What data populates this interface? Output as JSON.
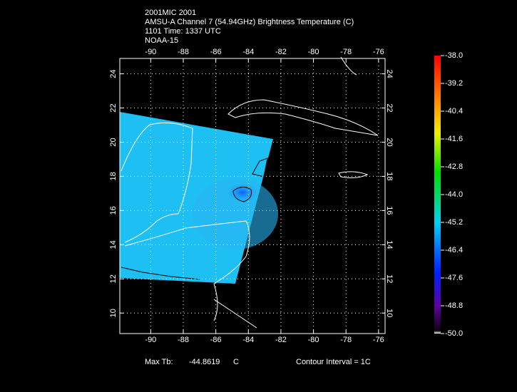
{
  "header": {
    "lines": [
      "2001MIC 2001",
      "AMSU-A Channel 7 (54.94GHz) Brightness Temperature (C)",
      "1101 Time: 1337 UTC",
      "NOAA-15"
    ]
  },
  "map": {
    "lon_range": [
      -91.9,
      -75.6
    ],
    "lat_range": [
      8.8,
      24.9
    ],
    "lon_ticks": [
      -90,
      -88,
      -86,
      -84,
      -82,
      -80,
      -78,
      -76
    ],
    "lat_ticks": [
      10,
      12,
      14,
      16,
      18,
      20,
      22,
      24
    ],
    "grid": true
  },
  "colorbar": {
    "range": [
      -50,
      -38
    ],
    "ticks": [
      {
        "value": -38,
        "label": "-38.0"
      },
      {
        "value": -39.2,
        "label": "-39.2"
      },
      {
        "value": -40.4,
        "label": "-40.4"
      },
      {
        "value": -41.6,
        "label": "-41.6"
      },
      {
        "value": -42.8,
        "label": "-42.8"
      },
      {
        "value": -44,
        "label": "-44.0"
      },
      {
        "value": -45.2,
        "label": "-45.2"
      },
      {
        "value": -46.4,
        "label": "-46.4"
      },
      {
        "value": -47.6,
        "label": "-47.6"
      },
      {
        "value": -48.8,
        "label": "-48.8"
      },
      {
        "value": -50,
        "label": "-50.0"
      }
    ]
  },
  "footer": {
    "max_label": "Max Tb:",
    "max_value": "-44.8619",
    "max_unit": "C",
    "contour": "Contour Interval = 1C"
  }
}
